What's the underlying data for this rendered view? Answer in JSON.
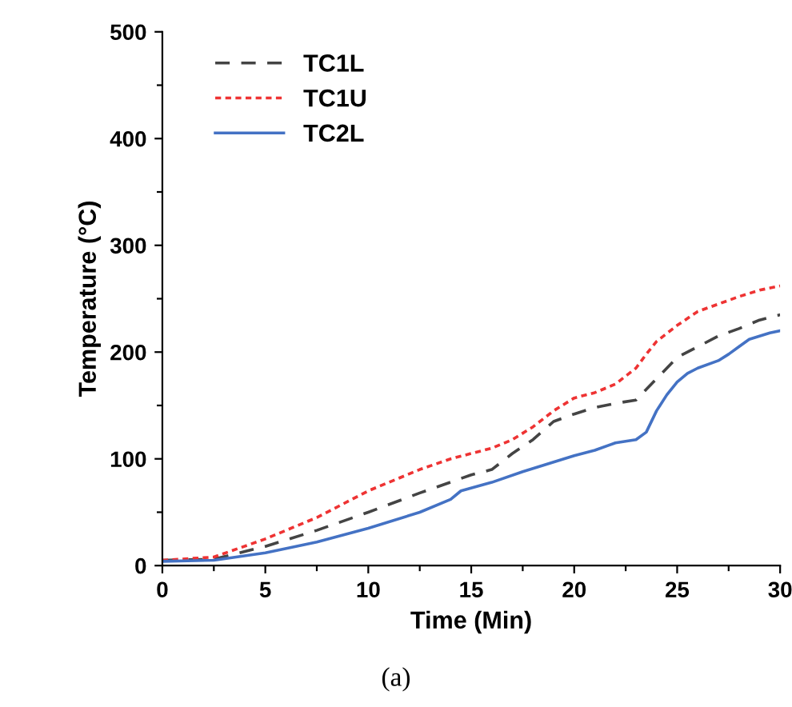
{
  "chart_data": {
    "type": "line",
    "xlabel": "Time (Min)",
    "ylabel": "Temperature (°C)",
    "annotations": [
      "(a)"
    ],
    "xlim": [
      0,
      30
    ],
    "ylim": [
      0,
      500
    ],
    "xticks": [
      0,
      {
        "value": 2.5,
        "label": null
      },
      5,
      {
        "value": 7.5,
        "label": null
      },
      10,
      {
        "value": 12.5,
        "label": null
      },
      15,
      {
        "value": 17.5,
        "label": null
      },
      20,
      {
        "value": 22.5,
        "label": null
      },
      25,
      {
        "value": 27.5,
        "label": null
      },
      30
    ],
    "yticks": [
      0,
      {
        "value": 50,
        "label": null
      },
      100,
      {
        "value": 150,
        "label": null
      },
      200,
      {
        "value": 250,
        "label": null
      },
      300,
      {
        "value": 350,
        "label": null
      },
      400,
      {
        "value": 450,
        "label": null
      },
      500
    ],
    "grid": false,
    "legend": "top left",
    "series": [
      {
        "name": "TC1L",
        "color": "#444444",
        "line_style": "dashed",
        "x": [
          0,
          2.5,
          5,
          7.5,
          10,
          12.5,
          15,
          16,
          17,
          18,
          19,
          20,
          21,
          22,
          23,
          24,
          25,
          26,
          27,
          28,
          29,
          30
        ],
        "values": [
          5,
          6,
          18,
          33,
          50,
          68,
          85,
          90,
          105,
          118,
          135,
          142,
          148,
          152,
          155,
          175,
          195,
          205,
          215,
          222,
          230,
          235
        ]
      },
      {
        "name": "TC1U",
        "color": "#ee3333",
        "line_style": "dotted",
        "x": [
          0,
          2.5,
          5,
          7.5,
          10,
          12.5,
          14,
          15,
          16,
          17,
          18,
          19,
          20,
          21,
          22,
          23,
          23.5,
          24,
          25,
          26,
          27,
          28,
          29,
          30
        ],
        "values": [
          5,
          8,
          25,
          45,
          70,
          90,
          100,
          105,
          110,
          118,
          130,
          145,
          157,
          162,
          170,
          185,
          198,
          210,
          225,
          238,
          245,
          252,
          258,
          262
        ]
      },
      {
        "name": "TC2L",
        "color": "#4472c4",
        "line_style": "solid",
        "x": [
          0,
          2.5,
          5,
          7.5,
          10,
          12.5,
          14,
          14.5,
          16,
          17.5,
          20,
          21,
          22,
          23,
          23.5,
          24,
          24.5,
          25,
          25.5,
          26,
          27,
          27.5,
          28,
          28.5,
          29.5,
          30
        ],
        "values": [
          4,
          5,
          12,
          22,
          35,
          50,
          62,
          70,
          78,
          88,
          103,
          108,
          115,
          118,
          125,
          145,
          160,
          172,
          180,
          185,
          192,
          198,
          205,
          212,
          218,
          220
        ]
      }
    ]
  }
}
